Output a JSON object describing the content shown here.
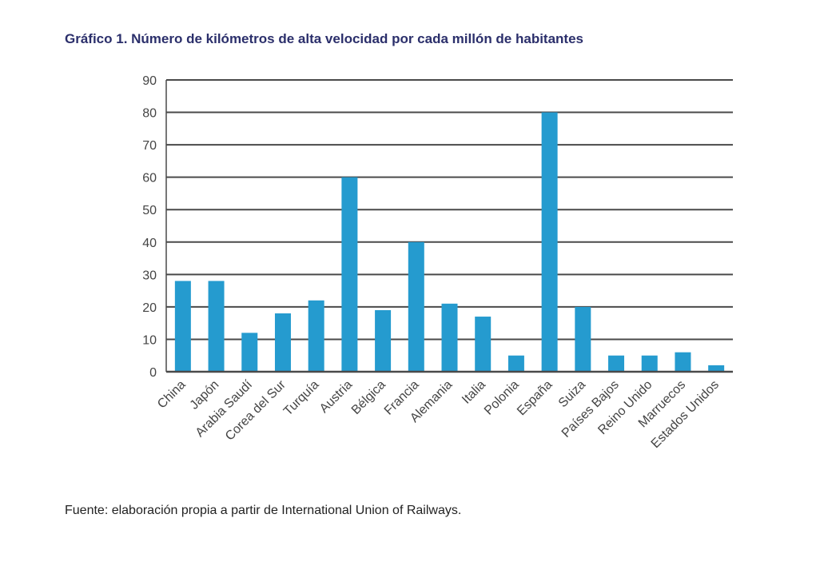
{
  "chart_data": {
    "type": "bar",
    "title": "Gráfico 1. Número de kilómetros de alta velocidad por cada millón de habitantes",
    "categories": [
      "China",
      "Japón",
      "Arabia Saudí",
      "Corea del Sur",
      "Turquía",
      "Austria",
      "Bélgica",
      "Francia",
      "Alemania",
      "Italia",
      "Polonia",
      "España",
      "Suiza",
      "Países Bajos",
      "Reino Unido",
      "Marruecos",
      "Estados Unidos"
    ],
    "values": [
      28,
      28,
      12,
      18,
      22,
      60,
      19,
      40,
      21,
      17,
      5,
      80,
      20,
      5,
      5,
      6,
      2
    ],
    "ylim": [
      0,
      90
    ],
    "yticks": [
      0,
      10,
      20,
      30,
      40,
      50,
      60,
      70,
      80,
      90
    ],
    "xlabel": "",
    "ylabel": "",
    "grid": true,
    "bar_color": "#259bcf",
    "source": "Fuente: elaboración propia a partir de International Union of Railways."
  }
}
